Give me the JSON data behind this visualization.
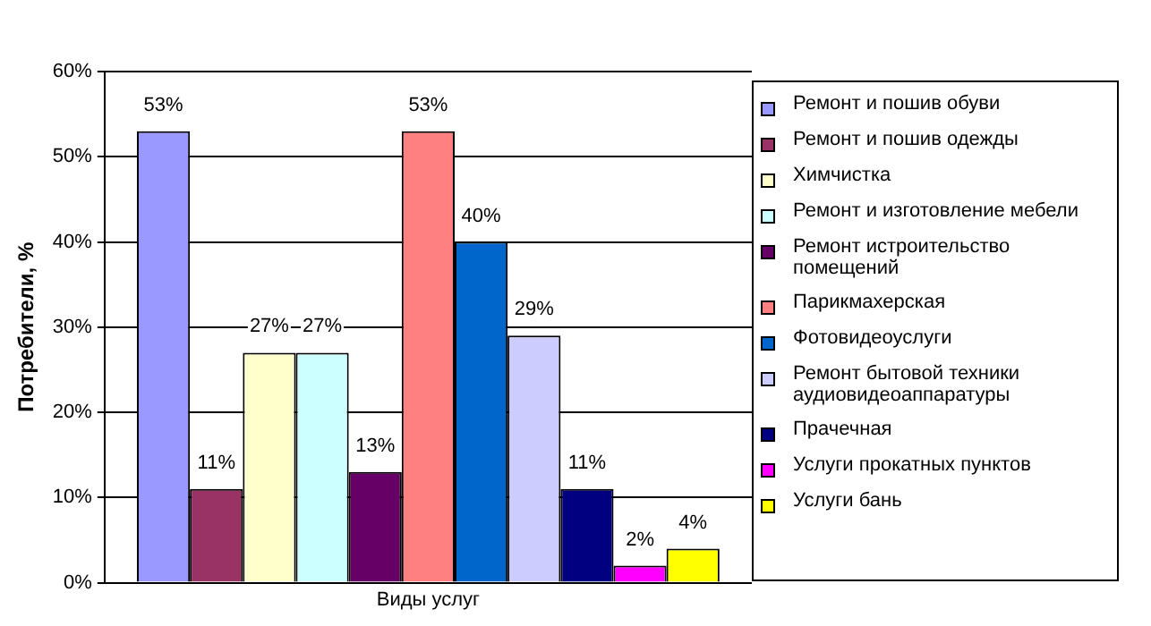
{
  "chart_data": {
    "type": "bar",
    "xlabel": null,
    "ylabel": "Потребители, %",
    "categories": [
      "Виды услуг"
    ],
    "series": [
      {
        "name": "Ремонт и пошив обуви",
        "color": "#9999ff",
        "values": [
          53
        ],
        "value_labels": [
          "53%"
        ]
      },
      {
        "name": "Ремонт и пошив одежды",
        "color": "#993366",
        "values": [
          11
        ],
        "value_labels": [
          "11%"
        ]
      },
      {
        "name": "Химчистка",
        "color": "#ffffcc",
        "values": [
          27
        ],
        "value_labels": [
          "27%"
        ]
      },
      {
        "name": "Ремонт и изготовление мебели",
        "color": "#ccffff",
        "values": [
          27
        ],
        "value_labels": [
          "27%"
        ]
      },
      {
        "name": "Ремонт истроительство помещений",
        "color": "#660066",
        "values": [
          13
        ],
        "value_labels": [
          "13%"
        ]
      },
      {
        "name": "Парикмахерская",
        "color": "#ff8080",
        "values": [
          53
        ],
        "value_labels": [
          "53%"
        ]
      },
      {
        "name": "Фотовидеоуслуги",
        "color": "#0066cc",
        "values": [
          40
        ],
        "value_labels": [
          "40%"
        ]
      },
      {
        "name": "Ремонт бытовой техники аудиовидеоаппаратуры",
        "color": "#ccccff",
        "values": [
          29
        ],
        "value_labels": [
          "29%"
        ]
      },
      {
        "name": "Прачечная",
        "color": "#000080",
        "values": [
          11
        ],
        "value_labels": [
          "11%"
        ]
      },
      {
        "name": "Услуги прокатных пунктов",
        "color": "#ff00ff",
        "values": [
          2
        ],
        "value_labels": [
          "2%"
        ]
      },
      {
        "name": "Услуги бань",
        "color": "#ffff00",
        "values": [
          4
        ],
        "value_labels": [
          "4%"
        ]
      }
    ],
    "ylim": [
      0,
      60
    ],
    "yticks": [
      {
        "value": 0,
        "label": "0%"
      },
      {
        "value": 10,
        "label": "10%"
      },
      {
        "value": 20,
        "label": "20%"
      },
      {
        "value": 30,
        "label": "30%"
      },
      {
        "value": 40,
        "label": "40%"
      },
      {
        "value": 50,
        "label": "50%"
      },
      {
        "value": 60,
        "label": "60%"
      }
    ],
    "grid": "y",
    "legend": "right"
  }
}
